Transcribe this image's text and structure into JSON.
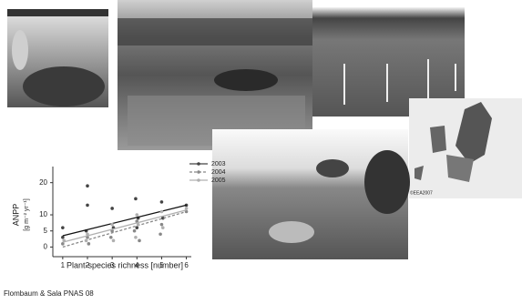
{
  "chart_data": {
    "type": "scatter",
    "ylabel": "ANPP",
    "ylabel_units": "[g m⁻² yr⁻¹]",
    "xlabel": "Plant-species richness [number]",
    "xlim": [
      0.6,
      6.2
    ],
    "xticks": [
      1,
      2,
      3,
      4,
      5,
      6
    ],
    "ylim": [
      -3,
      25
    ],
    "yticks": [
      0,
      5,
      10,
      20
    ],
    "legend": "top-right",
    "series": [
      {
        "name": "2003",
        "color": "#444444",
        "line_style": "solid",
        "x": [
          1,
          1,
          2,
          2,
          1.95,
          3,
          3.05,
          3.95,
          4.05,
          4,
          5,
          5.05,
          6
        ],
        "values": [
          6,
          3,
          19,
          13,
          5,
          12,
          6,
          15,
          9,
          6,
          14,
          9,
          13
        ],
        "fit": {
          "x": [
            1,
            6
          ],
          "y": [
            3.5,
            13
          ]
        }
      },
      {
        "name": "2004",
        "color": "#888888",
        "line_style": "dashed",
        "x": [
          1,
          2,
          2.05,
          3,
          2.95,
          4,
          3.9,
          4.1,
          5,
          4.95,
          6
        ],
        "values": [
          1,
          3,
          1,
          5,
          3,
          8,
          5,
          2,
          7,
          4,
          11
        ],
        "fit": {
          "x": [
            1,
            6
          ],
          "y": [
            0,
            11
          ]
        }
      },
      {
        "name": "2005",
        "color": "#b0b0b0",
        "line_style": "solid",
        "x": [
          1.05,
          2,
          1.95,
          3,
          3.05,
          4,
          4.05,
          3.95,
          5,
          5.05,
          6
        ],
        "values": [
          2,
          4,
          2,
          7,
          2,
          10,
          7,
          3,
          11,
          6,
          12
        ],
        "fit": {
          "x": [
            1,
            6
          ],
          "y": [
            1.5,
            11.5
          ]
        }
      }
    ]
  },
  "captions": {
    "map_credit": "©EEA2007",
    "source": "Flombaum & Sala PNAS  08"
  }
}
